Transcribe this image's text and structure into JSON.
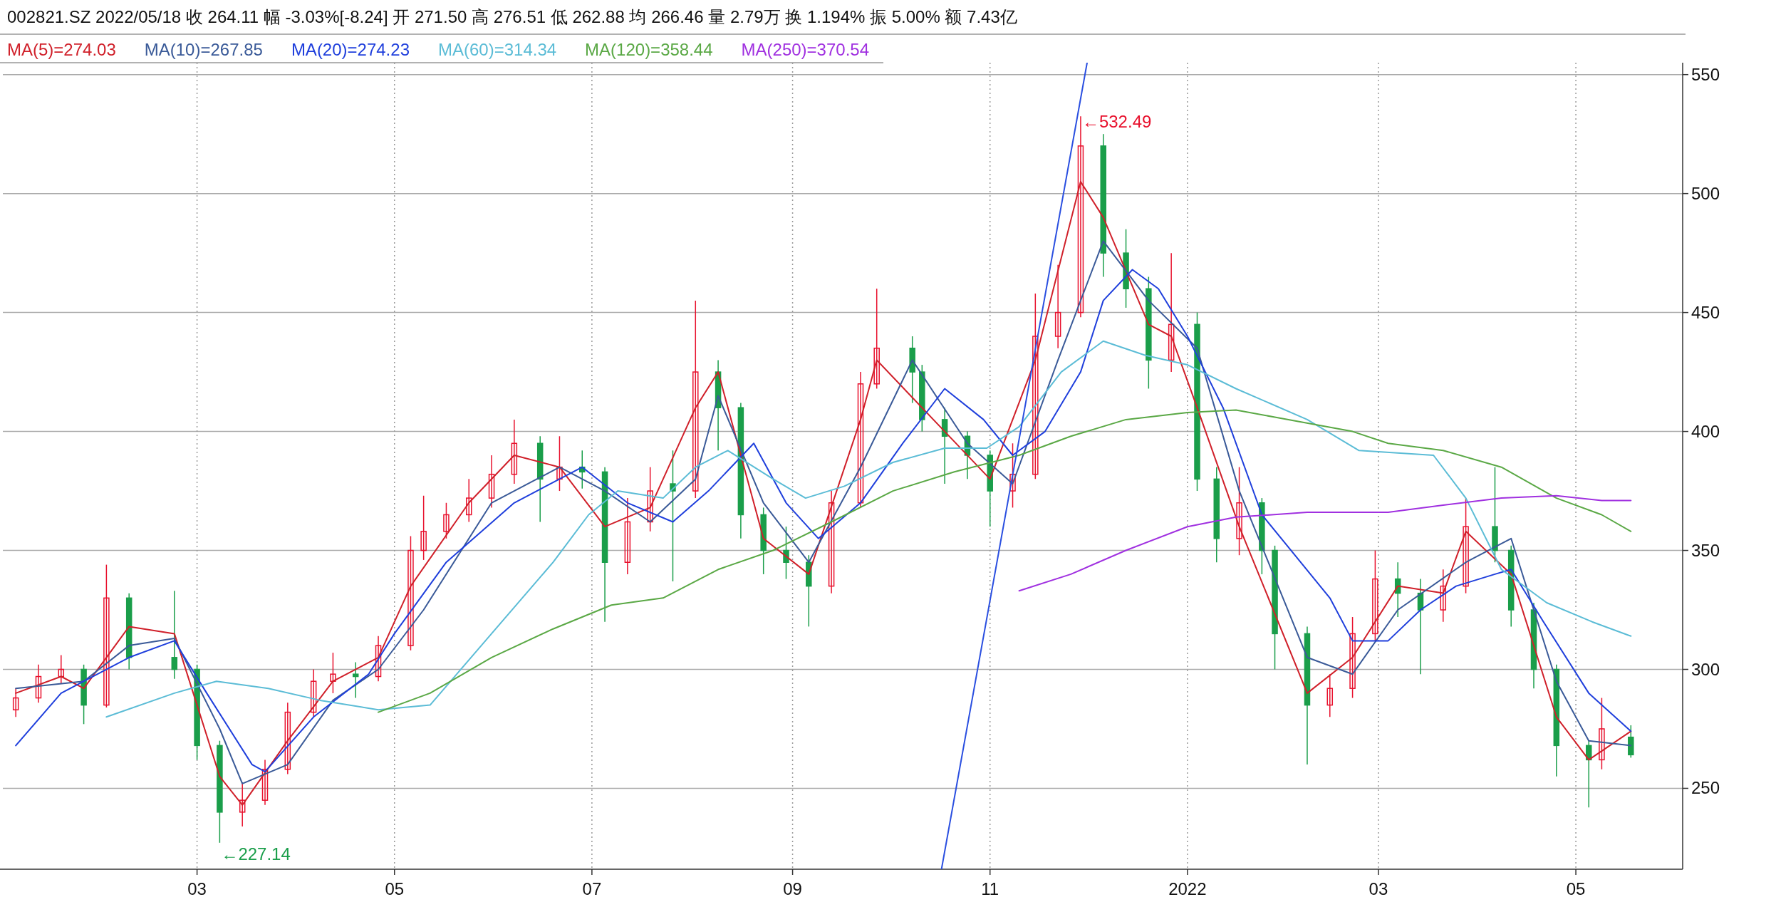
{
  "chart_data": {
    "type": "candlestick",
    "title": "002821.SZ 2022/05/18  收 264.11  幅 -3.03%[-8.24]  开 271.50  高 276.51  低 262.88  均 266.46  量 2.79万  换 1.194%  振 5.00%  额 7.43亿",
    "x": [
      "2021-01-04",
      "2021-01-11",
      "2021-01-18",
      "2021-01-25",
      "2021-02-01",
      "2021-02-08",
      "2021-02-22",
      "2021-03-01",
      "2021-03-08",
      "2021-03-15",
      "2021-03-22",
      "2021-03-29",
      "2021-04-06",
      "2021-04-12",
      "2021-04-19",
      "2021-04-26",
      "2021-05-06",
      "2021-05-10",
      "2021-05-17",
      "2021-05-24",
      "2021-05-31",
      "2021-06-07",
      "2021-06-15",
      "2021-06-21",
      "2021-06-28",
      "2021-07-05",
      "2021-07-12",
      "2021-07-19",
      "2021-07-26",
      "2021-08-02",
      "2021-08-09",
      "2021-08-16",
      "2021-08-23",
      "2021-08-30",
      "2021-09-06",
      "2021-09-13",
      "2021-09-22",
      "2021-09-27",
      "2021-10-08",
      "2021-10-11",
      "2021-10-18",
      "2021-10-25",
      "2021-11-01",
      "2021-11-08",
      "2021-11-15",
      "2021-11-22",
      "2021-11-29",
      "2021-12-06",
      "2021-12-13",
      "2021-12-20",
      "2021-12-27",
      "2022-01-04",
      "2022-01-10",
      "2022-01-17",
      "2022-01-24",
      "2022-01-28",
      "2022-02-07",
      "2022-02-14",
      "2022-02-21",
      "2022-02-28",
      "2022-03-07",
      "2022-03-14",
      "2022-03-21",
      "2022-03-28",
      "2022-04-06",
      "2022-04-11",
      "2022-04-18",
      "2022-04-25",
      "2022-05-05",
      "2022-05-09",
      "2022-05-18"
    ],
    "ohlc": [
      [
        283,
        292,
        280,
        288
      ],
      [
        288,
        302,
        286,
        297
      ],
      [
        297,
        306,
        294,
        300
      ],
      [
        300,
        302,
        277,
        285
      ],
      [
        285,
        344,
        284,
        330
      ],
      [
        330,
        332,
        300,
        305
      ],
      [
        305,
        333,
        296,
        300
      ],
      [
        300,
        302,
        262,
        268
      ],
      [
        268,
        270,
        227.14,
        240
      ],
      [
        240,
        252,
        234,
        245
      ],
      [
        245,
        262,
        243,
        258
      ],
      [
        258,
        286,
        256,
        282
      ],
      [
        282,
        300,
        280,
        295
      ],
      [
        295,
        307,
        290,
        298
      ],
      [
        298,
        303,
        288,
        297
      ],
      [
        297,
        314,
        295,
        310
      ],
      [
        310,
        356,
        308,
        350
      ],
      [
        350,
        373,
        346,
        358
      ],
      [
        358,
        370,
        355,
        365
      ],
      [
        365,
        380,
        362,
        372
      ],
      [
        372,
        390,
        368,
        382
      ],
      [
        382,
        405,
        378,
        395
      ],
      [
        395,
        398,
        362,
        380
      ],
      [
        380,
        398,
        375,
        385
      ],
      [
        385,
        392,
        376,
        383
      ],
      [
        383,
        385,
        320,
        345
      ],
      [
        345,
        372,
        340,
        362
      ],
      [
        362,
        385,
        358,
        375
      ],
      [
        378,
        392,
        337,
        375
      ],
      [
        375,
        455,
        372,
        425
      ],
      [
        425,
        430,
        392,
        410
      ],
      [
        410,
        412,
        355,
        365
      ],
      [
        365,
        368,
        340,
        350
      ],
      [
        350,
        360,
        338,
        345
      ],
      [
        345,
        348,
        318,
        335
      ],
      [
        335,
        375,
        332,
        370
      ],
      [
        370,
        425,
        368,
        420
      ],
      [
        420,
        460,
        418,
        435
      ],
      [
        435,
        440,
        412,
        425
      ],
      [
        425,
        428,
        400,
        405
      ],
      [
        405,
        410,
        378,
        398
      ],
      [
        398,
        400,
        380,
        390
      ],
      [
        390,
        392,
        360,
        375
      ],
      [
        375,
        395,
        368,
        382
      ],
      [
        382,
        458,
        380,
        440
      ],
      [
        440,
        470,
        435,
        450
      ],
      [
        450,
        532.49,
        448,
        520
      ],
      [
        520,
        525,
        465,
        475
      ],
      [
        475,
        485,
        452,
        460
      ],
      [
        460,
        465,
        418,
        430
      ],
      [
        430,
        475,
        425,
        445
      ],
      [
        445,
        450,
        375,
        380
      ],
      [
        380,
        385,
        345,
        355
      ],
      [
        355,
        385,
        348,
        370
      ],
      [
        370,
        372,
        340,
        350
      ],
      [
        350,
        352,
        300,
        315
      ],
      [
        315,
        318,
        260,
        285
      ],
      [
        285,
        298,
        280,
        292
      ],
      [
        292,
        322,
        288,
        315
      ],
      [
        315,
        350,
        312,
        338
      ],
      [
        338,
        345,
        322,
        332
      ],
      [
        332,
        338,
        298,
        325
      ],
      [
        325,
        342,
        320,
        335
      ],
      [
        335,
        372,
        332,
        360
      ],
      [
        360,
        385,
        345,
        350
      ],
      [
        350,
        352,
        318,
        325
      ],
      [
        325,
        328,
        292,
        300
      ],
      [
        300,
        302,
        255,
        268
      ],
      [
        268,
        270,
        242,
        262
      ],
      [
        262,
        288,
        258,
        275
      ],
      [
        271.5,
        276.51,
        262.88,
        264.11
      ]
    ],
    "colors": [
      "#e8112d",
      "#e8112d",
      "#e8112d",
      "#1a9e4a",
      "#e8112d",
      "#1a9e4a",
      "#1a9e4a",
      "#1a9e4a",
      "#1a9e4a",
      "#e8112d",
      "#e8112d",
      "#e8112d",
      "#e8112d",
      "#e8112d",
      "#1a9e4a",
      "#e8112d",
      "#e8112d",
      "#e8112d",
      "#e8112d",
      "#e8112d",
      "#e8112d",
      "#e8112d",
      "#1a9e4a",
      "#e8112d",
      "#1a9e4a",
      "#1a9e4a",
      "#e8112d",
      "#e8112d",
      "#1a9e4a",
      "#e8112d",
      "#1a9e4a",
      "#1a9e4a",
      "#1a9e4a",
      "#1a9e4a",
      "#1a9e4a",
      "#e8112d",
      "#e8112d",
      "#e8112d",
      "#1a9e4a",
      "#1a9e4a",
      "#1a9e4a",
      "#1a9e4a",
      "#1a9e4a",
      "#e8112d",
      "#e8112d",
      "#e8112d",
      "#e8112d",
      "#1a9e4a",
      "#1a9e4a",
      "#1a9e4a",
      "#e8112d",
      "#1a9e4a",
      "#1a9e4a",
      "#e8112d",
      "#1a9e4a",
      "#1a9e4a",
      "#1a9e4a",
      "#e8112d",
      "#e8112d",
      "#e8112d",
      "#1a9e4a",
      "#1a9e4a",
      "#e8112d",
      "#e8112d",
      "#1a9e4a",
      "#1a9e4a",
      "#1a9e4a",
      "#1a9e4a",
      "#1a9e4a",
      "#e8112d",
      "#1a9e4a"
    ],
    "series": [
      {
        "type": "line",
        "name": "MA(5)=274.03",
        "color": "#d0202a",
        "x": [
          "2021-01-04",
          "2021-01-18",
          "2021-01-25",
          "2021-02-01",
          "2021-02-08",
          "2021-02-22",
          "2021-03-01",
          "2021-03-08",
          "2021-03-15",
          "2021-03-29",
          "2021-04-12",
          "2021-04-26",
          "2021-05-06",
          "2021-05-24",
          "2021-06-07",
          "2021-06-21",
          "2021-07-05",
          "2021-07-19",
          "2021-08-02",
          "2021-08-09",
          "2021-08-23",
          "2021-09-06",
          "2021-09-22",
          "2021-09-27",
          "2021-10-18",
          "2021-11-01",
          "2021-11-15",
          "2021-11-29",
          "2021-12-06",
          "2021-12-20",
          "2021-12-27",
          "2022-01-04",
          "2022-01-17",
          "2022-02-07",
          "2022-02-21",
          "2022-03-07",
          "2022-03-21",
          "2022-03-28",
          "2022-04-11",
          "2022-04-25",
          "2022-05-05",
          "2022-05-18"
        ],
        "values": [
          290,
          297,
          292,
          305,
          318,
          315,
          285,
          255,
          243,
          270,
          295,
          305,
          335,
          370,
          390,
          385,
          360,
          368,
          410,
          425,
          355,
          340,
          405,
          430,
          400,
          380,
          430,
          505,
          490,
          445,
          440,
          410,
          360,
          290,
          305,
          335,
          332,
          358,
          340,
          280,
          262,
          274
        ]
      },
      {
        "type": "line",
        "name": "MA(10)=267.85",
        "color": "#3a5a98",
        "x": [
          "2021-01-04",
          "2021-01-25",
          "2021-02-08",
          "2021-02-22",
          "2021-03-08",
          "2021-03-15",
          "2021-03-29",
          "2021-04-12",
          "2021-04-26",
          "2021-05-10",
          "2021-05-31",
          "2021-06-21",
          "2021-07-05",
          "2021-07-19",
          "2021-08-02",
          "2021-08-09",
          "2021-08-23",
          "2021-09-06",
          "2021-09-22",
          "2021-10-08",
          "2021-10-25",
          "2021-11-08",
          "2021-11-22",
          "2021-12-06",
          "2021-12-20",
          "2022-01-04",
          "2022-01-17",
          "2022-02-07",
          "2022-02-21",
          "2022-03-07",
          "2022-03-28",
          "2022-04-11",
          "2022-04-25",
          "2022-05-05",
          "2022-05-18"
        ],
        "values": [
          292,
          295,
          310,
          313,
          275,
          252,
          260,
          287,
          300,
          325,
          370,
          385,
          375,
          362,
          380,
          415,
          370,
          345,
          385,
          430,
          395,
          378,
          430,
          480,
          455,
          435,
          375,
          305,
          298,
          325,
          345,
          355,
          295,
          270,
          268
        ]
      },
      {
        "type": "line",
        "name": "MA(20)=274.23",
        "color": "#1f3fdc",
        "x": [
          "2021-01-04",
          "2021-01-18",
          "2021-02-08",
          "2021-02-22",
          "2021-03-04",
          "2021-03-18",
          "2021-03-22",
          "2021-04-06",
          "2021-04-23",
          "2021-05-01",
          "2021-05-17",
          "2021-06-07",
          "2021-06-28",
          "2021-07-12",
          "2021-07-26",
          "2021-08-06",
          "2021-08-20",
          "2021-08-30",
          "2021-09-09",
          "2021-09-22",
          "2021-10-05",
          "2021-10-18",
          "2021-10-30",
          "2021-11-08",
          "2021-11-18",
          "2021-11-29",
          "2021-12-06",
          "2021-12-15",
          "2021-12-23",
          "2022-01-01",
          "2022-01-12",
          "2022-01-24",
          "2022-02-14",
          "2022-02-21",
          "2022-03-04",
          "2022-03-14",
          "2022-03-25",
          "2022-04-06",
          "2022-04-11",
          "2022-04-21",
          "2022-05-05",
          "2022-05-18"
        ],
        "values": [
          268,
          290,
          305,
          312,
          290,
          260,
          257,
          280,
          298,
          315,
          345,
          370,
          385,
          370,
          362,
          375,
          395,
          370,
          355,
          370,
          395,
          418,
          405,
          390,
          400,
          425,
          455,
          468,
          460,
          440,
          410,
          365,
          330,
          312,
          312,
          325,
          335,
          340,
          342,
          320,
          290,
          274
        ]
      },
      {
        "type": "line",
        "name": "MA(60)=314.34",
        "color": "#5bbcd6",
        "x": [
          "2021-02-01",
          "2021-02-22",
          "2021-03-07",
          "2021-03-23",
          "2021-04-08",
          "2021-04-26",
          "2021-05-12",
          "2021-05-31",
          "2021-06-19",
          "2021-06-30",
          "2021-07-09",
          "2021-07-23",
          "2021-08-02",
          "2021-08-12",
          "2021-08-26",
          "2021-09-05",
          "2021-09-17",
          "2021-10-02",
          "2021-10-18",
          "2021-10-31",
          "2021-11-10",
          "2021-11-23",
          "2021-12-06",
          "2021-12-19",
          "2022-01-01",
          "2022-01-16",
          "2022-02-07",
          "2022-02-23",
          "2022-03-18",
          "2022-03-28",
          "2022-04-08",
          "2022-04-22",
          "2022-05-06",
          "2022-05-18"
        ],
        "values": [
          280,
          290,
          295,
          292,
          287,
          283,
          285,
          315,
          345,
          365,
          375,
          372,
          385,
          392,
          380,
          372,
          377,
          387,
          393,
          393,
          402,
          425,
          438,
          432,
          428,
          418,
          405,
          392,
          390,
          372,
          342,
          328,
          320,
          314
        ]
      },
      {
        "type": "line",
        "name": "MA(120)=358.44",
        "color": "#5aa845",
        "x": [
          "2021-04-26",
          "2021-05-12",
          "2021-05-31",
          "2021-06-19",
          "2021-07-07",
          "2021-07-23",
          "2021-08-09",
          "2021-08-26",
          "2021-09-13",
          "2021-10-02",
          "2021-10-21",
          "2021-11-10",
          "2021-11-26",
          "2021-12-13",
          "2022-01-01",
          "2022-01-16",
          "2022-01-28",
          "2022-02-21",
          "2022-03-04",
          "2022-03-21",
          "2022-04-08",
          "2022-04-25",
          "2022-05-09",
          "2022-05-18"
        ],
        "values": [
          282,
          290,
          305,
          317,
          327,
          330,
          342,
          350,
          362,
          375,
          383,
          390,
          398,
          405,
          408,
          409,
          406,
          400,
          395,
          392,
          385,
          372,
          365,
          358
        ]
      },
      {
        "type": "line",
        "name": "MA(250)=370.54",
        "color": "#a030e0",
        "x": [
          "2021-11-10",
          "2021-11-26",
          "2021-12-13",
          "2022-01-01",
          "2022-01-16",
          "2022-02-07",
          "2022-03-04",
          "2022-03-21",
          "2022-04-08",
          "2022-04-25",
          "2022-05-09",
          "2022-05-18"
        ],
        "values": [
          333,
          340,
          350,
          360,
          364,
          366,
          366,
          369,
          372,
          373,
          371,
          371
        ]
      },
      {
        "type": "line",
        "color": "#2a4fe0",
        "x": [
          "2021-10-17",
          "2021-12-01"
        ],
        "values": [
          216,
          555
        ]
      }
    ],
    "annotations": [
      {
        "text": "←532.49",
        "x": "2021-11-29",
        "y": 532.49
      },
      {
        "text": "←227.14",
        "x": "2021-03-08",
        "y": 227.14
      }
    ],
    "xlim": [
      "2020-12-31",
      "2022-06-03"
    ],
    "xticks": [
      {
        "value": "2021-03-01",
        "label": "03"
      },
      {
        "value": "2021-05-01",
        "label": "05"
      },
      {
        "value": "2021-07-01",
        "label": "07"
      },
      {
        "value": "2021-09-01",
        "label": "09"
      },
      {
        "value": "2021-11-01",
        "label": "11"
      },
      {
        "value": "2022-01-01",
        "label": "2022"
      },
      {
        "value": "2022-03-01",
        "label": "03"
      },
      {
        "value": "2022-05-01",
        "label": "05"
      }
    ],
    "ylim": [
      216,
      555
    ],
    "yticks": [
      250,
      300,
      350,
      400,
      450,
      500,
      550
    ],
    "grid": true,
    "legend": "top left",
    "marker": "none",
    "line_style": "solid"
  }
}
